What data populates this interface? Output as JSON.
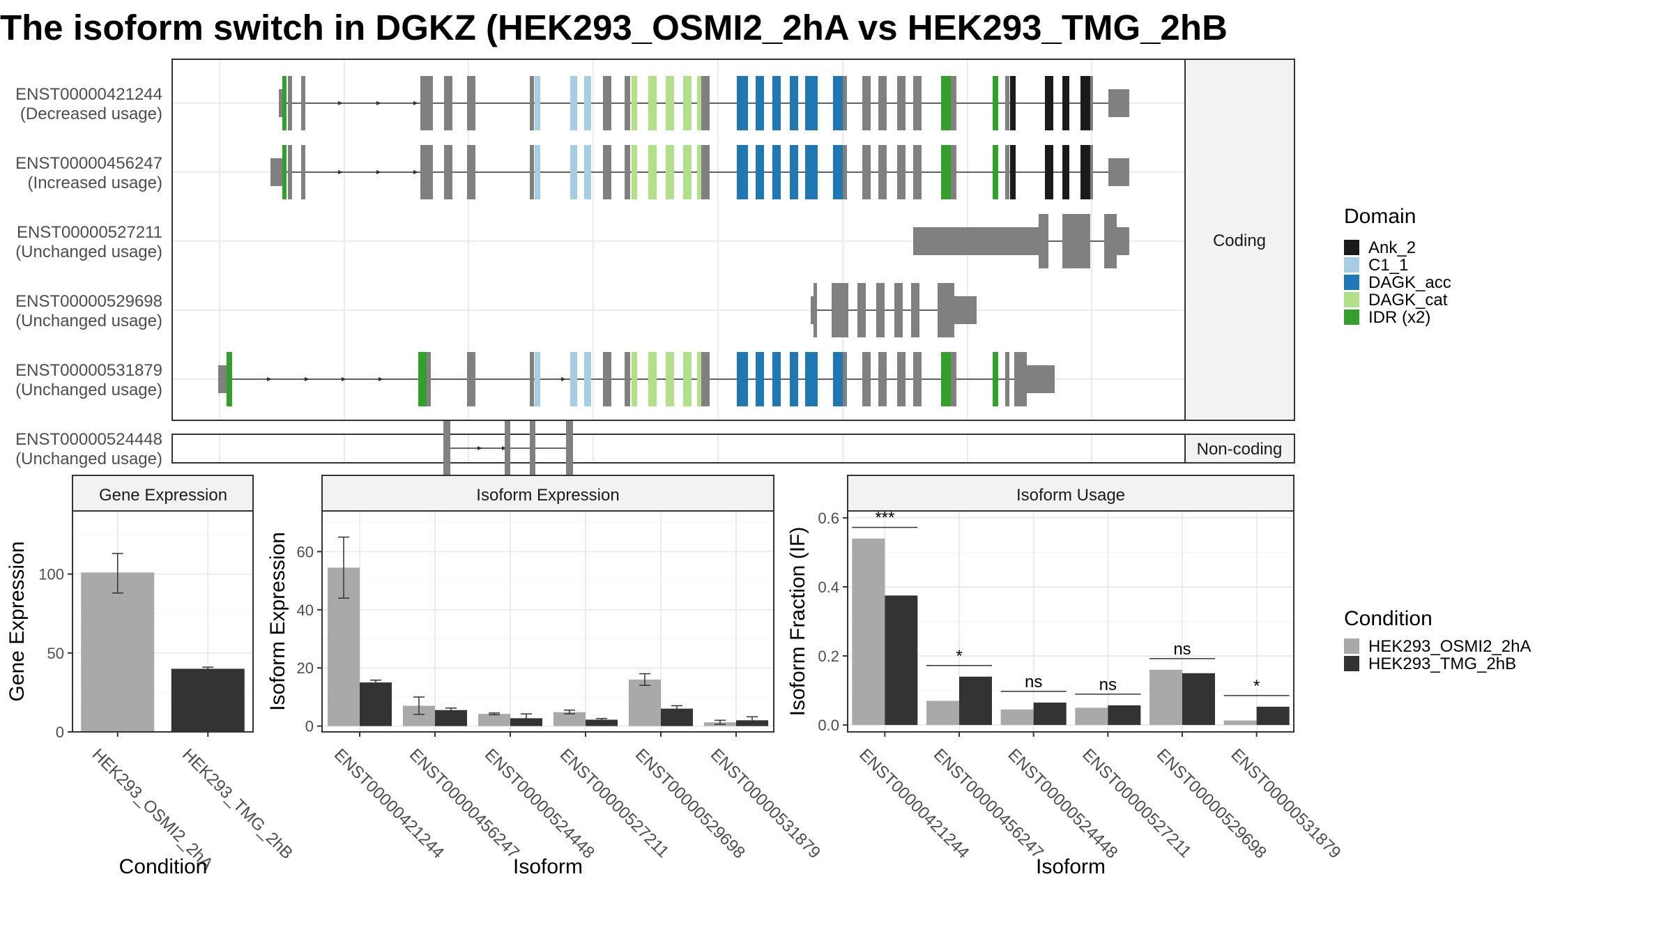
{
  "title": "The isoform switch in DGKZ (HEK293_OSMI2_2hA vs HEK293_TMG_2hB",
  "colors": {
    "exon": "#808080",
    "Ank_2": "#1a1a1a",
    "C1_1": "#a6cee3",
    "DAGK_acc": "#1f78b4",
    "DAGK_cat": "#b2df8a",
    "IDR": "#33a02c",
    "cond_a": "#a9a9a9",
    "cond_b": "#333333",
    "grid": "#ebebeb",
    "strip": "#f2f2f2"
  },
  "transcripts": {
    "coding_label": "Coding",
    "noncoding_label": "Non-coding",
    "rows": [
      {
        "id": "ENST00000421244",
        "usage": "(Decreased usage)"
      },
      {
        "id": "ENST00000456247",
        "usage": "(Increased usage)"
      },
      {
        "id": "ENST00000527211",
        "usage": "(Unchanged usage)"
      },
      {
        "id": "ENST00000529698",
        "usage": "(Unchanged usage)"
      },
      {
        "id": "ENST00000531879",
        "usage": "(Unchanged usage)"
      },
      {
        "id": "ENST00000524448",
        "usage": "(Unchanged usage)"
      }
    ]
  },
  "legend_domain": {
    "title": "Domain",
    "items": [
      "Ank_2",
      "C1_1",
      "DAGK_acc",
      "DAGK_cat",
      "IDR (x2)"
    ]
  },
  "legend_condition": {
    "title": "Condition",
    "items": [
      "HEK293_OSMI2_2hA",
      "HEK293_TMG_2hB"
    ]
  },
  "chart_data": [
    {
      "type": "bar",
      "title": "Gene Expression",
      "xlabel": "Condition",
      "ylabel": "Gene Expression",
      "categories": [
        "HEK293_OSMI2_2hA",
        "HEK293_TMG_2hB"
      ],
      "values": [
        101,
        40
      ],
      "error": [
        [
          88,
          113
        ],
        [
          39.5,
          41
        ]
      ],
      "ylim": [
        0,
        140
      ],
      "yticks": [
        0,
        50,
        100
      ]
    },
    {
      "type": "bar",
      "title": "Isoform Expression",
      "xlabel": "Isoform",
      "ylabel": "Isoform Expression",
      "categories": [
        "ENST00000421244",
        "ENST00000456247",
        "ENST00000524448",
        "ENST00000527211",
        "ENST00000529698",
        "ENST00000531879"
      ],
      "series": [
        {
          "name": "HEK293_OSMI2_2hA",
          "values": [
            54.5,
            7,
            4.2,
            4.8,
            16,
            1.3
          ],
          "error": [
            [
              44,
              65
            ],
            [
              4,
              10
            ],
            [
              3.9,
              4.5
            ],
            [
              4.2,
              5.5
            ],
            [
              14,
              18
            ],
            [
              0.6,
              2
            ]
          ]
        },
        {
          "name": "HEK293_TMG_2hB",
          "values": [
            15,
            5.5,
            2.7,
            2.2,
            6,
            2
          ],
          "error": [
            [
              14.3,
              15.8
            ],
            [
              4.8,
              6.2
            ],
            [
              1.2,
              4.2
            ],
            [
              1.8,
              2.6
            ],
            [
              5,
              7
            ],
            [
              0.8,
              3.2
            ]
          ]
        }
      ],
      "ylim": [
        -2,
        74
      ],
      "yticks": [
        0,
        20,
        40,
        60
      ]
    },
    {
      "type": "bar",
      "title": "Isoform Usage",
      "xlabel": "Isoform",
      "ylabel": "Isoform Fraction (IF)",
      "categories": [
        "ENST00000421244",
        "ENST00000456247",
        "ENST00000524448",
        "ENST00000527211",
        "ENST00000529698",
        "ENST00000531879"
      ],
      "series": [
        {
          "name": "HEK293_OSMI2_2hA",
          "values": [
            0.54,
            0.07,
            0.045,
            0.05,
            0.16,
            0.013
          ]
        },
        {
          "name": "HEK293_TMG_2hB",
          "values": [
            0.375,
            0.14,
            0.065,
            0.057,
            0.15,
            0.053
          ]
        }
      ],
      "significance": [
        "***",
        "*",
        "ns",
        "ns",
        "ns",
        "*"
      ],
      "ylim": [
        -0.02,
        0.62
      ],
      "yticks": [
        0.0,
        0.2,
        0.4,
        0.6
      ]
    }
  ]
}
